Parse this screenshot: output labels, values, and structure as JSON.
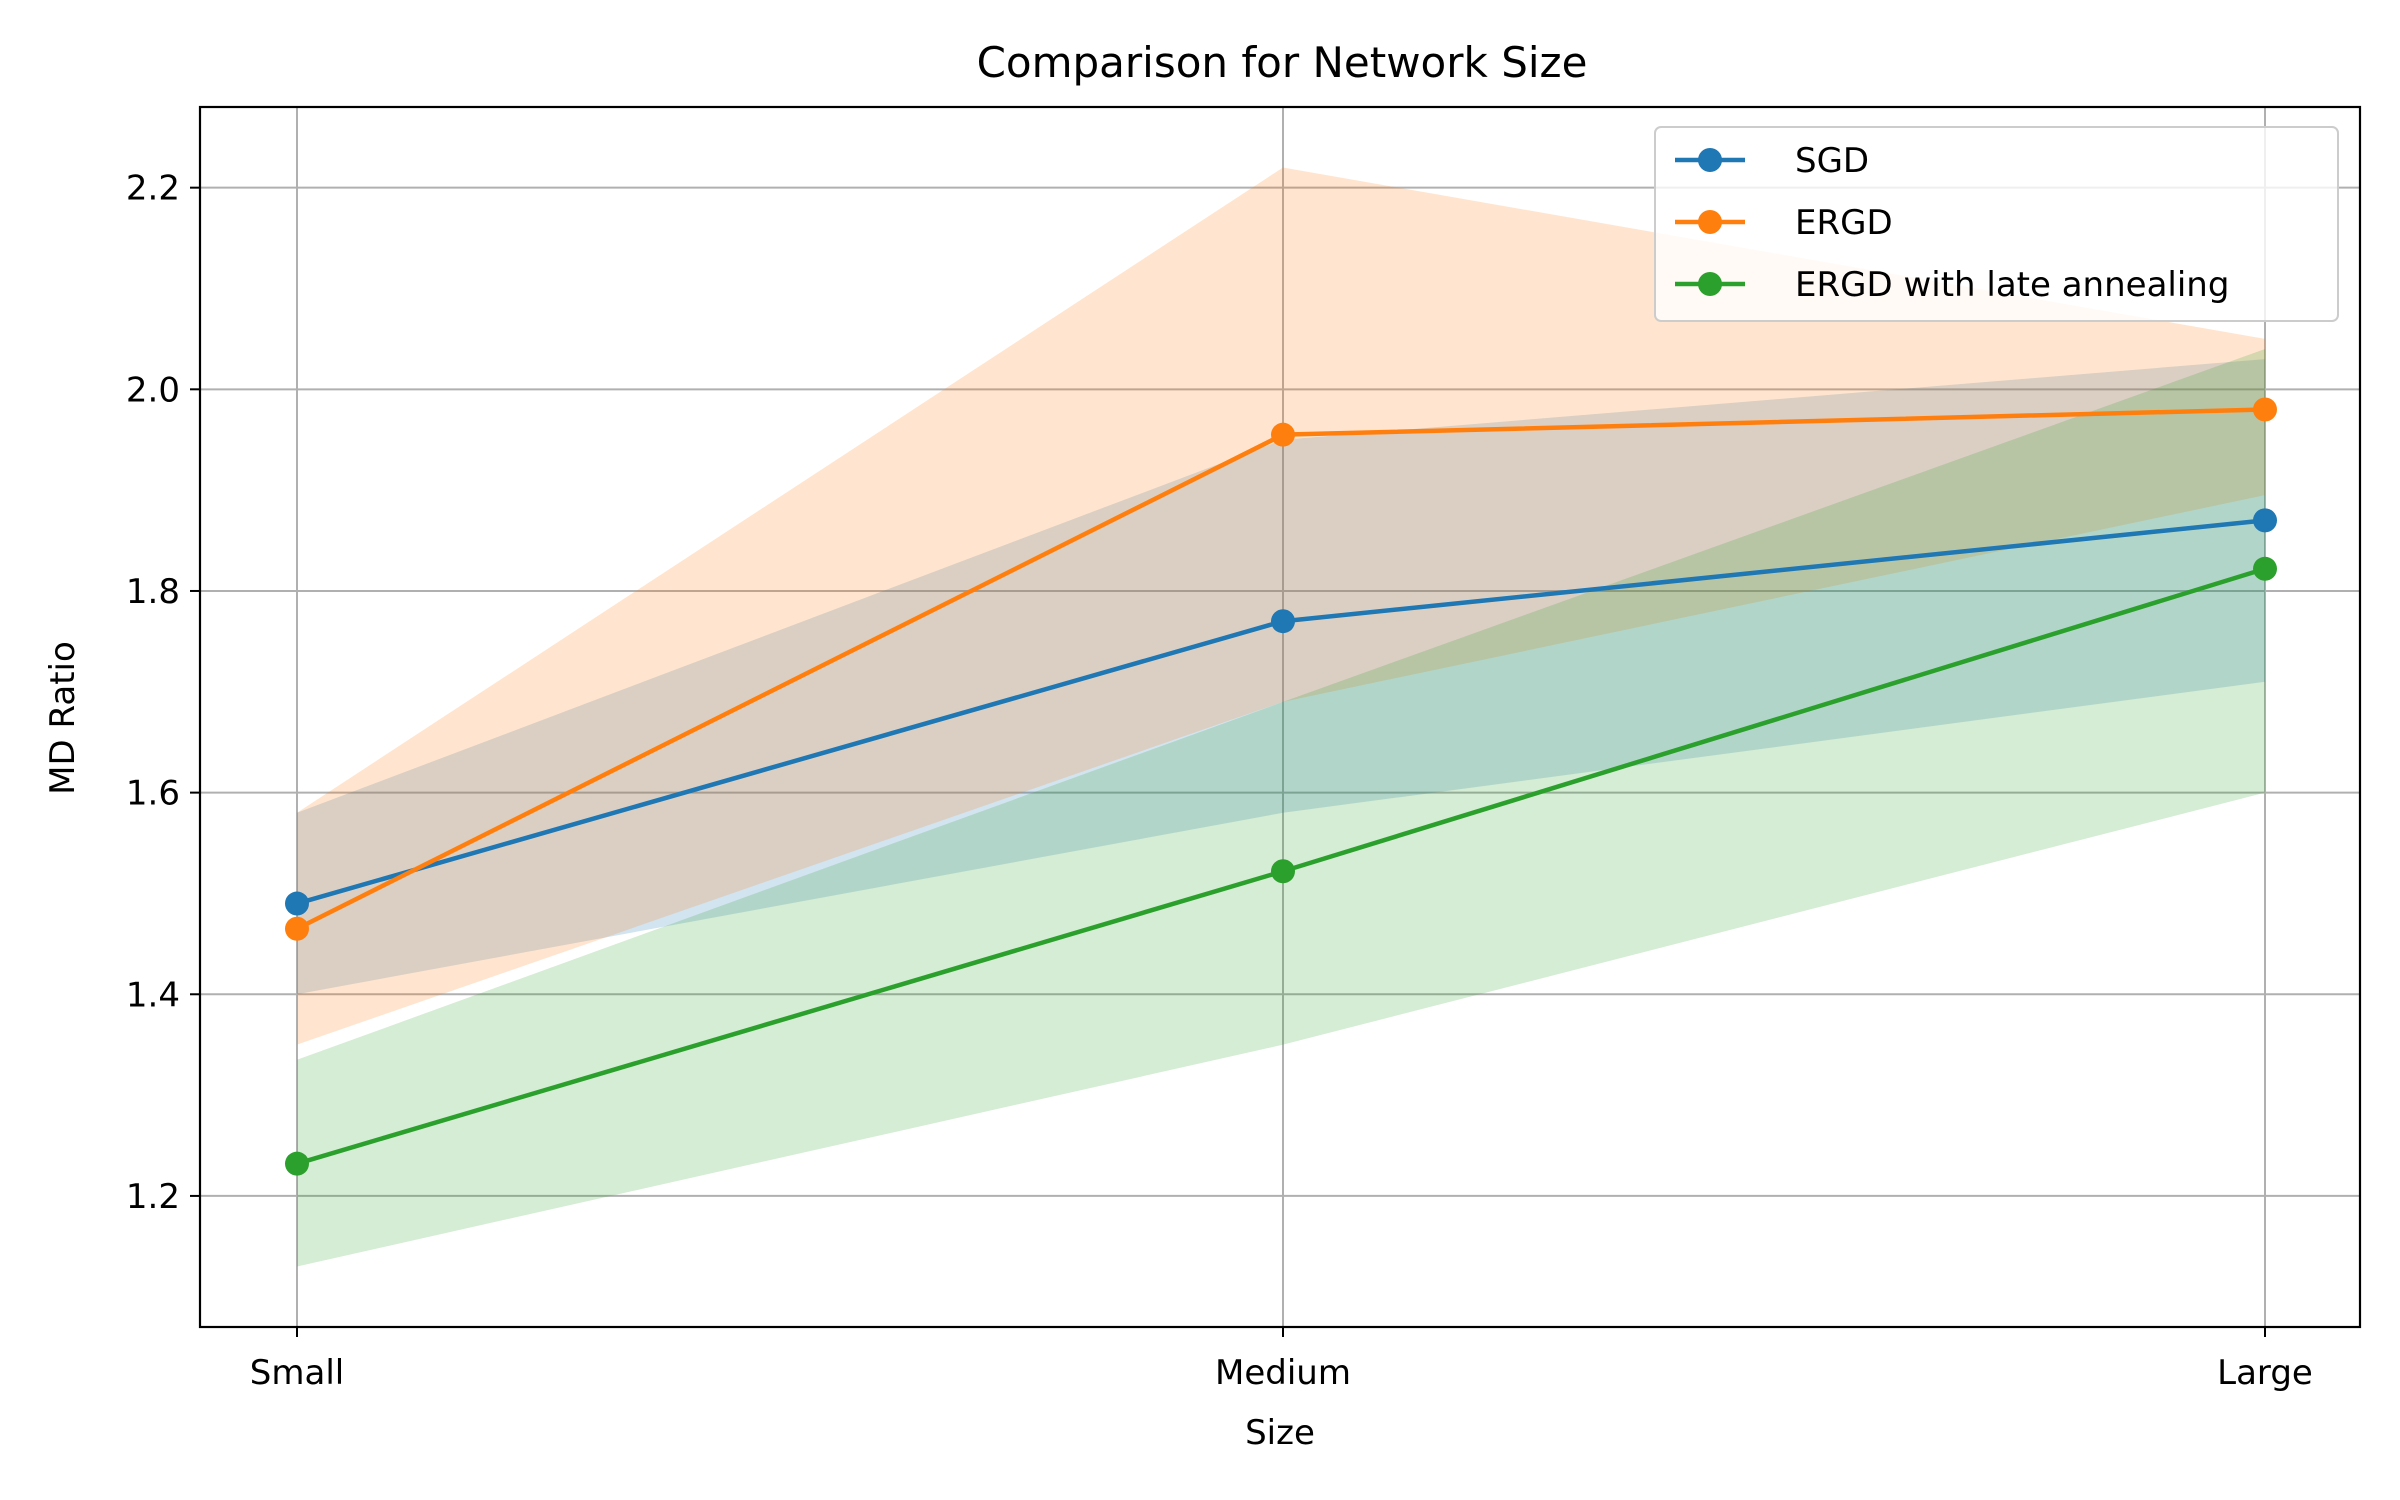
{
  "chart_data": {
    "type": "line",
    "title": "Comparison for Network Size",
    "xlabel": "Size",
    "ylabel": "MD Ratio",
    "categories": [
      "Small",
      "Medium",
      "Large"
    ],
    "ylim": [
      1.07,
      2.28
    ],
    "yticks": [
      1.2,
      1.4,
      1.6,
      1.8,
      2.0,
      2.2
    ],
    "ytick_labels": [
      "1.2",
      "1.4",
      "1.6",
      "1.8",
      "2.0",
      "2.2"
    ],
    "grid": true,
    "legend_position": "top-right",
    "series": [
      {
        "name": "SGD",
        "color": "#1f77b4",
        "values": [
          1.49,
          1.77,
          1.87
        ],
        "lower": [
          1.4,
          1.58,
          1.71
        ],
        "upper": [
          1.58,
          1.95,
          2.03
        ]
      },
      {
        "name": "ERGD",
        "color": "#ff7f0e",
        "values": [
          1.465,
          1.955,
          1.98
        ],
        "lower": [
          1.35,
          1.69,
          1.895
        ],
        "upper": [
          1.58,
          2.22,
          2.05
        ]
      },
      {
        "name": "ERGD with late annealing",
        "color": "#2ca02c",
        "values": [
          1.232,
          1.522,
          1.822
        ],
        "lower": [
          1.13,
          1.35,
          1.6
        ],
        "upper": [
          1.335,
          1.69,
          2.04
        ]
      }
    ]
  }
}
